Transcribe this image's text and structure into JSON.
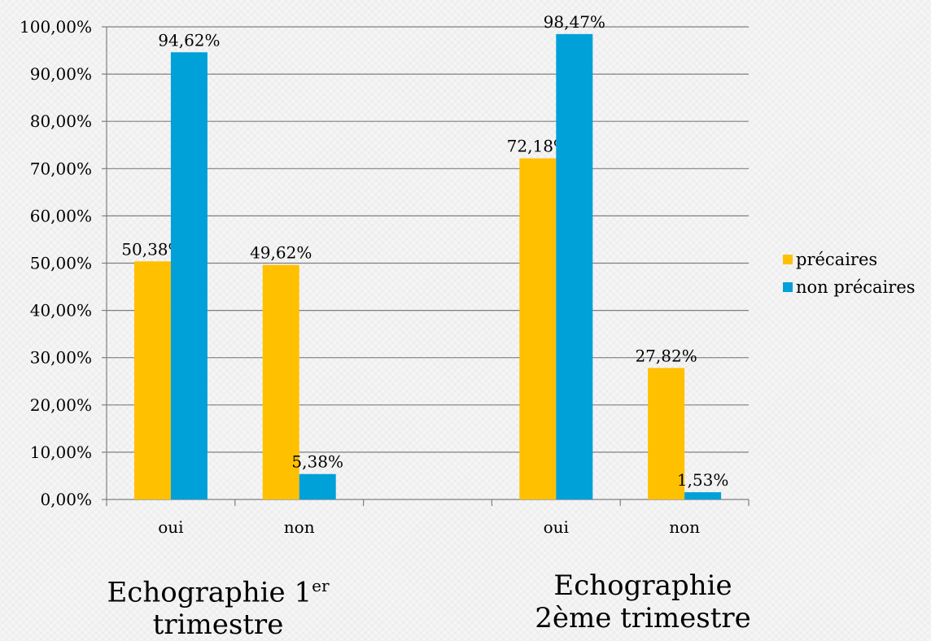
{
  "colors": {
    "series": [
      "#ffc000",
      "#00a0d8"
    ],
    "grid": "#7f7f7f",
    "axis": "#7f7f7f"
  },
  "chart_data": {
    "type": "bar",
    "y_tick_labels": [
      "0,00%",
      "10,00%",
      "20,00%",
      "30,00%",
      "40,00%",
      "50,00%",
      "60,00%",
      "70,00%",
      "80,00%",
      "90,00%",
      "100,00%"
    ],
    "ylim": [
      0,
      100
    ],
    "grid": true,
    "legend_position": "right",
    "categories": [
      "oui",
      "non",
      "",
      "oui",
      "non"
    ],
    "series": [
      {
        "name": "précaires",
        "values": [
          50.38,
          49.62,
          null,
          72.18,
          27.82
        ],
        "labels": [
          "50,38%",
          "49,62%",
          "",
          "72,18%",
          "27,82%"
        ]
      },
      {
        "name": "non précaires",
        "values": [
          94.62,
          5.38,
          null,
          98.47,
          1.53
        ],
        "labels": [
          "94,62%",
          "5,38%",
          "",
          "98,47%",
          "1,53%"
        ]
      }
    ]
  },
  "group_captions": {
    "first": {
      "line1": "Echographie 1",
      "sup": "er",
      "line2": "trimestre"
    },
    "second": {
      "line1": "Echographie",
      "line2": "2ème trimestre"
    }
  }
}
